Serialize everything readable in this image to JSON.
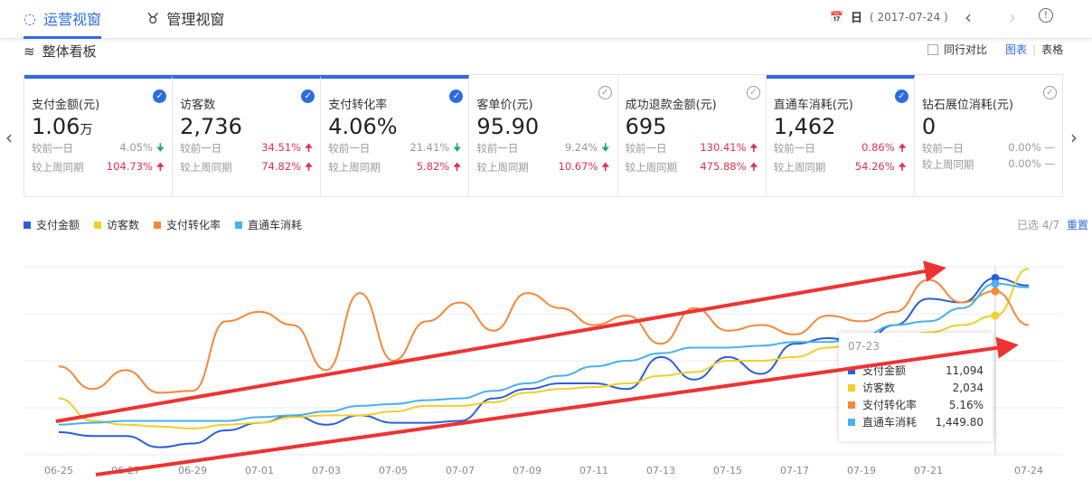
{
  "header": {
    "tabs": [
      {
        "label": "运营视窗",
        "icon": "ops-icon",
        "active": true
      },
      {
        "label": "管理视窗",
        "icon": "manage-icon",
        "active": false
      }
    ],
    "date_mode": "日",
    "date_value": "( 2017-07-24 )"
  },
  "section": {
    "title": "整体看板",
    "compare_label": "同行对比",
    "view_chart": "图表",
    "view_table": "表格",
    "separator": "|"
  },
  "cards": [
    {
      "title": "支付金额(元)",
      "value": "1.06",
      "unit": "万",
      "selected": true,
      "d1_label": "较前一日",
      "d1": "4.05%",
      "d1_dir": "down",
      "w_label": "较上周同期",
      "w": "104.73%",
      "w_dir": "up"
    },
    {
      "title": "访客数",
      "value": "2,736",
      "unit": "",
      "selected": true,
      "d1_label": "较前一日",
      "d1": "34.51%",
      "d1_dir": "up",
      "w_label": "较上周同期",
      "w": "74.82%",
      "w_dir": "up"
    },
    {
      "title": "支付转化率",
      "value": "4.06%",
      "unit": "",
      "selected": true,
      "d1_label": "较前一日",
      "d1": "21.41%",
      "d1_dir": "down",
      "w_label": "较上周同期",
      "w": "5.82%",
      "w_dir": "up"
    },
    {
      "title": "客单价(元)",
      "value": "95.90",
      "unit": "",
      "selected": false,
      "d1_label": "较前一日",
      "d1": "9.24%",
      "d1_dir": "down",
      "w_label": "较上周同期",
      "w": "10.67%",
      "w_dir": "up"
    },
    {
      "title": "成功退款金额(元)",
      "value": "695",
      "unit": "",
      "selected": false,
      "d1_label": "较前一日",
      "d1": "130.41%",
      "d1_dir": "up",
      "w_label": "较上周同期",
      "w": "475.88%",
      "w_dir": "up"
    },
    {
      "title": "直通车消耗(元)",
      "value": "1,462",
      "unit": "",
      "selected": true,
      "d1_label": "较前一日",
      "d1": "0.86%",
      "d1_dir": "up",
      "w_label": "较上周同期",
      "w": "54.26%",
      "w_dir": "up"
    },
    {
      "title": "钻石展位消耗(元)",
      "value": "0",
      "unit": "",
      "selected": false,
      "d1_label": "较前一日",
      "d1": "0.00%",
      "d1_dir": "flat",
      "w_label": "较上周同期",
      "w": "0.00%",
      "w_dir": "flat"
    }
  ],
  "selection": {
    "text": "已选 4/7",
    "reset": "重置"
  },
  "colors": {
    "accent": "#2f6be0",
    "up": "#e0334c",
    "down": "#1aa87a",
    "annotation": "#ee3333"
  },
  "chart_data": {
    "type": "line",
    "ylim": [
      0,
      100
    ],
    "grid": true,
    "legend": "top-left",
    "x": [
      "06-25",
      "06-26",
      "06-27",
      "06-28",
      "06-29",
      "06-30",
      "07-01",
      "07-02",
      "07-03",
      "07-04",
      "07-05",
      "07-06",
      "07-07",
      "07-08",
      "07-09",
      "07-10",
      "07-11",
      "07-12",
      "07-13",
      "07-14",
      "07-15",
      "07-16",
      "07-17",
      "07-18",
      "07-19",
      "07-20",
      "07-21",
      "07-22",
      "07-23",
      "07-24"
    ],
    "xticks": [
      "06-25",
      "06-27",
      "06-29",
      "07-01",
      "07-03",
      "07-05",
      "07-07",
      "07-09",
      "07-11",
      "07-13",
      "07-15",
      "07-17",
      "07-19",
      "07-21",
      "07-24"
    ],
    "series": [
      {
        "name": "支付金额",
        "color": "#2a5fd8",
        "values": [
          12,
          10,
          10,
          4,
          6,
          13,
          17,
          21,
          16,
          21,
          17,
          17,
          18,
          30,
          35,
          38,
          38,
          35,
          52,
          40,
          52,
          43,
          59,
          62,
          59,
          69,
          83,
          81,
          94,
          90
        ]
      },
      {
        "name": "访客数",
        "color": "#f2cf2a",
        "values": [
          30,
          18,
          16,
          15,
          14,
          16,
          17,
          20,
          21,
          21,
          23,
          26,
          26,
          28,
          33,
          35,
          36,
          38,
          42,
          44,
          50,
          50,
          52,
          57,
          59,
          60,
          65,
          69,
          74,
          99
        ]
      },
      {
        "name": "支付转化率",
        "color": "#f5883a",
        "values": [
          47,
          35,
          45,
          33,
          34,
          71,
          76,
          69,
          45,
          86,
          50,
          71,
          81,
          66,
          86,
          78,
          69,
          74,
          59,
          78,
          66,
          69,
          64,
          74,
          71,
          76,
          93,
          81,
          87,
          69
        ]
      },
      {
        "name": "直通车消耗",
        "color": "#4ab0f0",
        "values": [
          16,
          17,
          18,
          18,
          18,
          18,
          20,
          21,
          23,
          26,
          27,
          29,
          30,
          34,
          38,
          42,
          47,
          50,
          54,
          57,
          57,
          58,
          60,
          60,
          63,
          69,
          71,
          78,
          91,
          89
        ]
      }
    ],
    "tooltip": {
      "date": "07-23",
      "rows": [
        {
          "name": "支付金额",
          "value": "11,094"
        },
        {
          "name": "访客数",
          "value": "2,034"
        },
        {
          "name": "支付转化率",
          "value": "5.16%"
        },
        {
          "name": "直通车消耗",
          "value": "1,449.80"
        }
      ]
    }
  }
}
